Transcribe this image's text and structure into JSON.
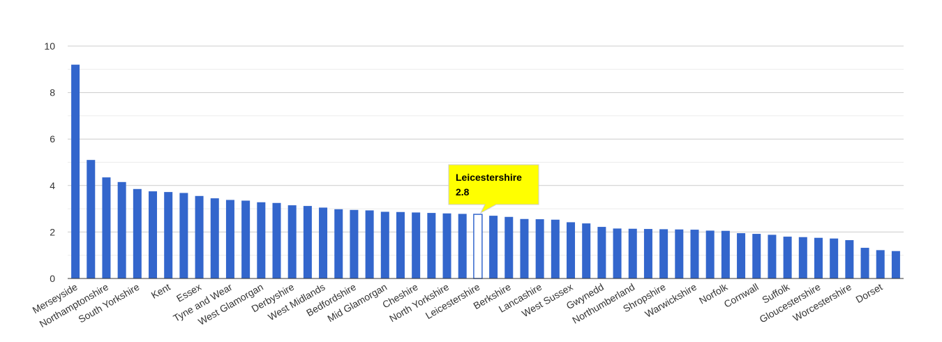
{
  "chart_data": {
    "type": "bar",
    "title": "",
    "xlabel": "",
    "ylabel": "",
    "ylim": [
      0,
      10
    ],
    "yticks": [
      0,
      2,
      4,
      6,
      8,
      10
    ],
    "grid": true,
    "bar_color": "#3366cc",
    "highlight_color": "#ffffff",
    "tooltip_color": "#ffff00",
    "categories": [
      "Merseyside",
      "",
      "Northamptonshire",
      "",
      "South Yorkshire",
      "",
      "Kent",
      "",
      "Essex",
      "",
      "Tyne and Wear",
      "",
      "West Glamorgan",
      "",
      "Derbyshire",
      "",
      "West Midlands",
      "",
      "Bedfordshire",
      "",
      "Mid Glamorgan",
      "",
      "Cheshire",
      "",
      "North Yorkshire",
      "",
      "Leicestershire",
      "",
      "Berkshire",
      "",
      "Lancashire",
      "",
      "West Sussex",
      "",
      "Gwynedd",
      "",
      "Northumberland",
      "",
      "Shropshire",
      "",
      "Warwickshire",
      "",
      "Norfolk",
      "",
      "Cornwall",
      "",
      "Suffolk",
      "",
      "Gloucestershire",
      "",
      "Worcestershire",
      "",
      "Dorset",
      ""
    ],
    "values": [
      9.2,
      5.1,
      4.35,
      4.15,
      3.85,
      3.75,
      3.72,
      3.68,
      3.55,
      3.45,
      3.38,
      3.35,
      3.28,
      3.25,
      3.15,
      3.12,
      3.05,
      2.98,
      2.95,
      2.93,
      2.87,
      2.86,
      2.84,
      2.82,
      2.8,
      2.78,
      2.76,
      2.7,
      2.65,
      2.56,
      2.55,
      2.53,
      2.42,
      2.37,
      2.22,
      2.15,
      2.14,
      2.13,
      2.12,
      2.11,
      2.1,
      2.06,
      2.05,
      1.95,
      1.92,
      1.88,
      1.8,
      1.78,
      1.75,
      1.72,
      1.65,
      1.32,
      1.22,
      1.18
    ],
    "highlight_index": 26,
    "tooltip": {
      "label": "Leicestershire",
      "value": "2.8"
    }
  }
}
